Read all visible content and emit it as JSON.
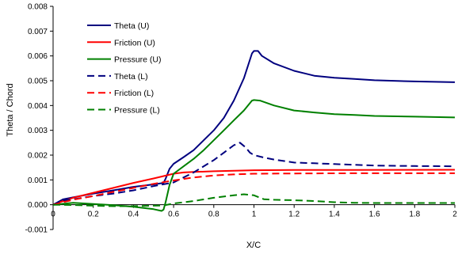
{
  "chart_data": {
    "type": "line",
    "title": "",
    "xlabel": "X/C",
    "ylabel": "Theta / Chord",
    "xlim": [
      0,
      2
    ],
    "ylim": [
      -0.001,
      0.008
    ],
    "xticks": [
      "0",
      "0.2",
      "0.4",
      "0.6",
      "0.8",
      "1",
      "1.2",
      "1.4",
      "1.6",
      "1.8",
      "2"
    ],
    "yticks": [
      "-0.001",
      "0.000",
      "0.001",
      "0.002",
      "0.003",
      "0.004",
      "0.005",
      "0.006",
      "0.007",
      "0.008"
    ],
    "grid": false,
    "legend_position": "top-left",
    "series": [
      {
        "name": "Theta (U)",
        "color": "#00007f",
        "dash": "solid",
        "points": [
          [
            0,
            0
          ],
          [
            0.05,
            0.00022
          ],
          [
            0.1,
            0.0003
          ],
          [
            0.2,
            0.00045
          ],
          [
            0.3,
            0.00058
          ],
          [
            0.4,
            0.00072
          ],
          [
            0.5,
            0.00082
          ],
          [
            0.55,
            0.00088
          ],
          [
            0.56,
            0.00105
          ],
          [
            0.58,
            0.00145
          ],
          [
            0.6,
            0.00165
          ],
          [
            0.65,
            0.00192
          ],
          [
            0.7,
            0.0022
          ],
          [
            0.75,
            0.0026
          ],
          [
            0.8,
            0.003
          ],
          [
            0.85,
            0.0035
          ],
          [
            0.9,
            0.0042
          ],
          [
            0.95,
            0.0051
          ],
          [
            0.99,
            0.0061
          ],
          [
            1.0,
            0.0062
          ],
          [
            1.02,
            0.0062
          ],
          [
            1.04,
            0.006
          ],
          [
            1.1,
            0.0057
          ],
          [
            1.2,
            0.0054
          ],
          [
            1.3,
            0.0052
          ],
          [
            1.4,
            0.00512
          ],
          [
            1.5,
            0.00507
          ],
          [
            1.6,
            0.00502
          ],
          [
            1.8,
            0.00497
          ],
          [
            2.0,
            0.00494
          ]
        ]
      },
      {
        "name": "Friction (U)",
        "color": "#ff0000",
        "dash": "solid",
        "points": [
          [
            0,
            0
          ],
          [
            0.05,
            0.00015
          ],
          [
            0.1,
            0.00028
          ],
          [
            0.2,
            0.00048
          ],
          [
            0.3,
            0.00068
          ],
          [
            0.4,
            0.00088
          ],
          [
            0.5,
            0.00106
          ],
          [
            0.6,
            0.00125
          ],
          [
            0.65,
            0.0013
          ],
          [
            0.7,
            0.00132
          ],
          [
            0.8,
            0.00135
          ],
          [
            0.9,
            0.00137
          ],
          [
            1.0,
            0.00139
          ],
          [
            1.2,
            0.0014
          ],
          [
            1.5,
            0.0014
          ],
          [
            2.0,
            0.00141
          ]
        ]
      },
      {
        "name": "Pressure (U)",
        "color": "#008000",
        "dash": "solid",
        "points": [
          [
            0,
            0
          ],
          [
            0.1,
            8e-05
          ],
          [
            0.2,
            3e-05
          ],
          [
            0.3,
            -2e-05
          ],
          [
            0.4,
            -8e-05
          ],
          [
            0.5,
            -0.00018
          ],
          [
            0.54,
            -0.00025
          ],
          [
            0.55,
            -0.0002
          ],
          [
            0.56,
            0.0001
          ],
          [
            0.58,
            0.0008
          ],
          [
            0.6,
            0.00125
          ],
          [
            0.65,
            0.00155
          ],
          [
            0.7,
            0.00185
          ],
          [
            0.75,
            0.0022
          ],
          [
            0.8,
            0.0026
          ],
          [
            0.85,
            0.003
          ],
          [
            0.9,
            0.0034
          ],
          [
            0.95,
            0.0038
          ],
          [
            0.99,
            0.0042
          ],
          [
            1.0,
            0.00422
          ],
          [
            1.03,
            0.0042
          ],
          [
            1.1,
            0.004
          ],
          [
            1.2,
            0.0038
          ],
          [
            1.3,
            0.00372
          ],
          [
            1.4,
            0.00365
          ],
          [
            1.5,
            0.00362
          ],
          [
            1.6,
            0.00358
          ],
          [
            1.8,
            0.00355
          ],
          [
            2.0,
            0.00352
          ]
        ]
      },
      {
        "name": "Theta (L)",
        "color": "#00007f",
        "dash": "dashed",
        "points": [
          [
            0,
            0
          ],
          [
            0.05,
            0.00018
          ],
          [
            0.1,
            0.00022
          ],
          [
            0.2,
            0.00035
          ],
          [
            0.3,
            0.00045
          ],
          [
            0.4,
            0.00058
          ],
          [
            0.5,
            0.00075
          ],
          [
            0.6,
            0.0009
          ],
          [
            0.7,
            0.0013
          ],
          [
            0.8,
            0.0018
          ],
          [
            0.85,
            0.0021
          ],
          [
            0.9,
            0.0024
          ],
          [
            0.93,
            0.0025
          ],
          [
            0.96,
            0.0023
          ],
          [
            0.98,
            0.0021
          ],
          [
            1.0,
            0.002
          ],
          [
            1.05,
            0.0019
          ],
          [
            1.1,
            0.00182
          ],
          [
            1.2,
            0.0017
          ],
          [
            1.3,
            0.00167
          ],
          [
            1.4,
            0.00164
          ],
          [
            1.5,
            0.00161
          ],
          [
            1.6,
            0.00158
          ],
          [
            1.8,
            0.00156
          ],
          [
            2.0,
            0.00155
          ]
        ]
      },
      {
        "name": "Friction (L)",
        "color": "#ff0000",
        "dash": "dashed",
        "points": [
          [
            0,
            0
          ],
          [
            0.05,
            0.0001
          ],
          [
            0.1,
            0.0002
          ],
          [
            0.2,
            0.00035
          ],
          [
            0.3,
            0.00052
          ],
          [
            0.4,
            0.00068
          ],
          [
            0.5,
            0.00084
          ],
          [
            0.6,
            0.00098
          ],
          [
            0.7,
            0.0011
          ],
          [
            0.8,
            0.00118
          ],
          [
            0.9,
            0.00122
          ],
          [
            1.0,
            0.00125
          ],
          [
            1.2,
            0.00126
          ],
          [
            1.5,
            0.00127
          ],
          [
            2.0,
            0.00127
          ]
        ]
      },
      {
        "name": "Pressure (L)",
        "color": "#008000",
        "dash": "dashed",
        "points": [
          [
            0,
            0
          ],
          [
            0.1,
            -1e-05
          ],
          [
            0.2,
            -4e-05
          ],
          [
            0.3,
            -6e-05
          ],
          [
            0.4,
            -6e-05
          ],
          [
            0.5,
            -4e-05
          ],
          [
            0.55,
            -3e-05
          ],
          [
            0.6,
            5e-05
          ],
          [
            0.7,
            0.00015
          ],
          [
            0.8,
            0.00028
          ],
          [
            0.9,
            0.00038
          ],
          [
            0.95,
            0.00042
          ],
          [
            1.0,
            0.00038
          ],
          [
            1.05,
            0.00022
          ],
          [
            1.1,
            0.0002
          ],
          [
            1.2,
            0.00018
          ],
          [
            1.3,
            0.00015
          ],
          [
            1.4,
            0.0001
          ],
          [
            1.5,
            8e-05
          ],
          [
            1.6,
            7e-05
          ],
          [
            1.8,
            7e-05
          ],
          [
            2.0,
            7e-05
          ]
        ]
      }
    ]
  }
}
